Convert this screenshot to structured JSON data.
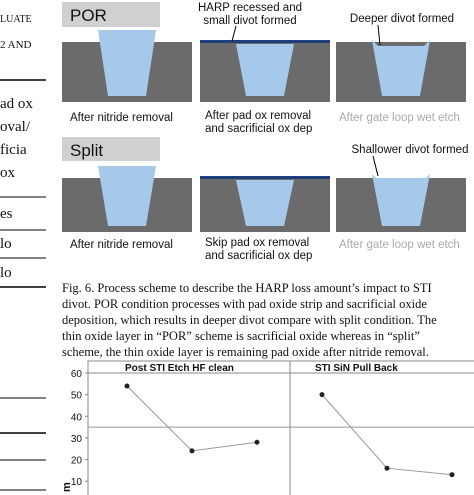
{
  "left_column": {
    "heading_fragments": [
      "LUATE",
      "2 AND"
    ],
    "table_fragments": [
      "ad ox",
      "oval/",
      "ficia",
      "ox",
      "es",
      "lo",
      "lo"
    ]
  },
  "figure6": {
    "por_label": "POR",
    "split_label": "Split",
    "annotations": [
      "HARP recessed and",
      "small divot formed",
      "Deeper divot formed",
      "Shallower divot formed"
    ],
    "captions": [
      "After nitride removal",
      "After pad ox removal",
      "and sacrificial ox dep",
      "After gate loop wet etch",
      "After nitride removal",
      "Skip pad ox removal",
      "and sacrificial ox dep",
      "After gate loop wet etch"
    ],
    "caption_lines": [
      "Fig. 6.   Process scheme to describe the HARP loss amount’s impact to STI",
      "divot. POR condition processes with pad oxide strip and sacrificial oxide",
      "deposition, which results in deeper divot compare with split condition. The",
      "thin oxide layer in “POR” scheme is sacrificial oxide whereas in “split”",
      "scheme, the thin oxide layer is remaining pad oxide after nitride removal."
    ]
  },
  "figure7": {
    "panel_titles": [
      "Post STI Etch HF clean",
      "STI SiN Pull Back"
    ],
    "y_label_fragment": "m",
    "ylim": [
      5,
      60
    ],
    "yticks": [
      60,
      50,
      40,
      30,
      20,
      10
    ],
    "series": [
      {
        "values": [
          54,
          24,
          28
        ]
      },
      {
        "values": [
          50,
          16,
          13
        ]
      }
    ],
    "reference_line": 35
  }
}
